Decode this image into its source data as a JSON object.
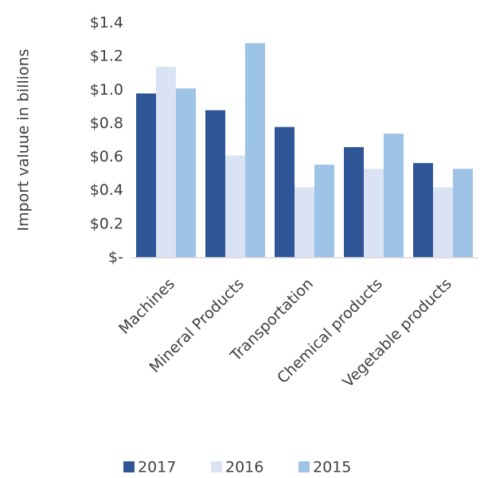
{
  "chart_data": {
    "type": "bar",
    "y_label": "Import valuue in billions",
    "categories": [
      "Machines",
      "Mineral Products",
      "Transportation",
      "Chemical products",
      "Vegetable products"
    ],
    "series": [
      {
        "name": "2017",
        "color": "#2f5597",
        "values": [
          0.98,
          0.88,
          0.78,
          0.66,
          0.565
        ]
      },
      {
        "name": "2016",
        "color": "#dae3f3",
        "values": [
          1.14,
          0.61,
          0.42,
          0.53,
          0.42
        ]
      },
      {
        "name": "2015",
        "color": "#9dc3e6",
        "values": [
          1.01,
          1.28,
          0.555,
          0.74,
          0.53
        ]
      }
    ],
    "ylim": [
      0,
      1.4
    ],
    "yticks": [
      {
        "value": 0,
        "label": "$-"
      },
      {
        "value": 0.2,
        "label": "$0.2"
      },
      {
        "value": 0.4,
        "label": "$0.4"
      },
      {
        "value": 0.6,
        "label": "$0.6"
      },
      {
        "value": 0.8,
        "label": "$0.8"
      },
      {
        "value": 1.0,
        "label": "$1.0"
      },
      {
        "value": 1.2,
        "label": "$1.2"
      },
      {
        "value": 1.4,
        "label": "$1.4"
      }
    ],
    "legend": "bottom"
  }
}
